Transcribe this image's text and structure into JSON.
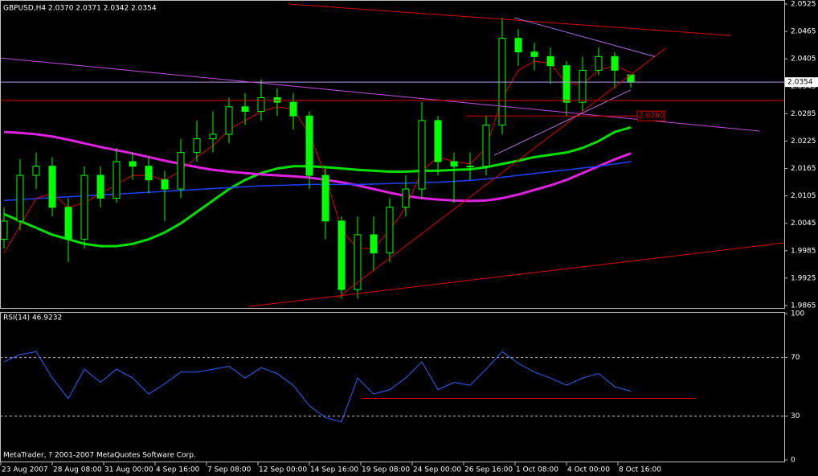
{
  "chart_data": [
    {
      "type": "candlestick",
      "title": "GBPUSD,H4  2.0370 2.0371 2.0342 2.0354",
      "color": "#00ff00",
      "price_line_color": "#b4a0e6",
      "open": [
        2.001,
        2.005,
        2.015,
        2.017,
        2.008,
        2.001,
        2.015,
        2.01,
        2.018,
        2.017,
        2.014,
        2.012,
        2.02,
        2.023,
        2.024,
        2.03,
        2.029,
        2.032,
        2.031,
        2.028,
        2.015,
        2.005,
        1.99,
        2.002,
        1.998,
        2.008,
        2.012,
        2.027,
        2.018,
        2.017,
        2.017,
        2.026,
        2.045,
        2.042,
        2.041,
        2.039,
        2.031,
        2.038,
        2.041,
        2.037
      ],
      "high": [
        2.008,
        2.0185,
        2.02,
        2.019,
        2.01,
        2.017,
        2.017,
        2.021,
        2.02,
        2.019,
        2.016,
        2.023,
        2.027,
        2.029,
        2.032,
        2.033,
        2.036,
        2.034,
        2.033,
        2.029,
        2.017,
        2.006,
        2.006,
        2.006,
        2.01,
        2.015,
        2.031,
        2.028,
        2.02,
        2.02,
        2.028,
        2.0495,
        2.047,
        2.044,
        2.043,
        2.04,
        2.041,
        2.043,
        2.042,
        2.0371
      ],
      "low": [
        1.999,
        2.003,
        2.012,
        2.006,
        1.996,
        1.999,
        2.008,
        2.009,
        2.014,
        2.011,
        2.005,
        2.01,
        2.018,
        2.02,
        2.022,
        2.026,
        2.027,
        2.028,
        2.025,
        2.012,
        2.001,
        1.988,
        1.988,
        1.994,
        1.996,
        2.006,
        2.01,
        2.015,
        2.009,
        2.014,
        2.015,
        2.024,
        2.039,
        2.038,
        2.035,
        2.028,
        2.029,
        2.037,
        2.034,
        2.0342
      ],
      "close": [
        2.005,
        2.015,
        2.017,
        2.008,
        2.001,
        2.015,
        2.01,
        2.018,
        2.017,
        2.014,
        2.012,
        2.02,
        2.023,
        2.024,
        2.03,
        2.029,
        2.032,
        2.031,
        2.028,
        2.015,
        2.005,
        1.99,
        2.002,
        1.998,
        2.008,
        2.012,
        2.027,
        2.018,
        2.017,
        2.017,
        2.026,
        2.045,
        2.042,
        2.041,
        2.039,
        2.031,
        2.038,
        2.041,
        2.038,
        2.0354
      ],
      "series": [
        {
          "color": "#00e000",
          "width": 3,
          "values": [
            2.0065,
            2.005,
            2.0035,
            2.002,
            2.001,
            2.0,
            1.9995,
            1.9995,
            2.0,
            2.001,
            2.0025,
            2.0045,
            2.007,
            2.0095,
            2.012,
            2.014,
            2.0155,
            2.0165,
            2.017,
            2.017,
            2.0168,
            2.0165,
            2.0162,
            2.016,
            2.0158,
            2.0158,
            2.016,
            2.016,
            2.0162,
            2.0163,
            2.0168,
            2.0175,
            2.0182,
            2.019,
            2.0195,
            2.02,
            2.021,
            2.0225,
            2.0245,
            2.0255
          ]
        },
        {
          "color": "#e020e0",
          "width": 3,
          "values": [
            2.0245,
            2.0243,
            2.024,
            2.0235,
            2.0228,
            2.022,
            2.0212,
            2.0205,
            2.0198,
            2.019,
            2.0182,
            2.0175,
            2.0168,
            2.0162,
            2.0158,
            2.0155,
            2.0152,
            2.015,
            2.0148,
            2.0145,
            2.014,
            2.0135,
            2.0128,
            2.012,
            2.0112,
            2.0105,
            2.01,
            2.0097,
            2.0095,
            2.0094,
            2.0095,
            2.01,
            2.0108,
            2.0118,
            2.0128,
            2.014,
            2.0155,
            2.017,
            2.0185,
            2.0198
          ]
        },
        {
          "color": "#2040ff",
          "width": 1.5,
          "values": [
            2.0095,
            2.0097,
            2.0099,
            2.0101,
            2.0103,
            2.0105,
            2.0107,
            2.0109,
            2.0111,
            2.0113,
            2.0115,
            2.0117,
            2.0119,
            2.0121,
            2.0123,
            2.0125,
            2.0127,
            2.0128,
            2.0129,
            2.013,
            2.013,
            2.013,
            2.013,
            2.0131,
            2.0132,
            2.0133,
            2.0134,
            2.0135,
            2.0137,
            2.0139,
            2.0142,
            2.0146,
            2.015,
            2.0154,
            2.0158,
            2.0162,
            2.0166,
            2.017,
            2.0175,
            2.018
          ]
        },
        {
          "color": "#e00000",
          "width": 1,
          "values": [
            1.998,
            2.004,
            2.01,
            2.011,
            2.008,
            2.009,
            2.011,
            2.013,
            2.015,
            2.015,
            2.014,
            2.016,
            2.019,
            2.0215,
            2.025,
            2.027,
            2.029,
            2.03,
            2.0295,
            2.024,
            2.015,
            2.003,
            1.999,
            1.999,
            2.003,
            2.008,
            2.016,
            2.019,
            2.018,
            2.0175,
            2.021,
            2.032,
            2.038,
            2.04,
            2.0395,
            2.035,
            2.035,
            2.038,
            2.039,
            2.0375
          ]
        }
      ],
      "lines": [
        {
          "color": "#c050e0",
          "x": [
            -0.25,
            47
          ],
          "y": [
            2.0407,
            2.0247
          ]
        },
        {
          "color": "#e00000",
          "x": [
            17.75,
            45.25
          ],
          "y": [
            2.0525,
            2.0456
          ]
        },
        {
          "color": "#e00000",
          "x": [
            15.25,
            48.5
          ],
          "y": [
            1.9863,
            2.0002
          ]
        },
        {
          "color": "#e00000",
          "x": [
            20.75,
            41.15
          ],
          "y": [
            1.9882,
            2.0428
          ]
        },
        {
          "color": "#b070e0",
          "x": [
            31.75,
            40.5
          ],
          "y": [
            2.0495,
            2.041
          ]
        },
        {
          "color": "#b070e0",
          "x": [
            30.5,
            39
          ],
          "y": [
            2.0194,
            2.0337
          ]
        },
        {
          "color": "#e00000",
          "x": [
            -0.25,
            48.5
          ],
          "y": [
            2.0314,
            2.0314
          ]
        },
        {
          "color": "#e00000",
          "x": [
            28.75,
            41
          ],
          "y": [
            2.028,
            2.028
          ],
          "label": "2.0280"
        }
      ],
      "ylim": [
        1.9865,
        2.0525
      ],
      "yticks": [
        1.9865,
        1.9925,
        1.9985,
        2.0045,
        2.0105,
        2.0165,
        2.0225,
        2.0285,
        2.0345,
        2.0405,
        2.0465,
        2.0525
      ]
    },
    {
      "type": "line",
      "title": "RSI(14) 46.9232",
      "color": "#3060ff",
      "values": [
        67,
        72,
        74,
        56,
        42,
        62,
        53,
        62,
        56,
        45,
        52,
        60,
        60,
        62,
        64,
        56,
        63,
        59,
        51,
        37,
        29,
        26,
        56,
        45,
        48,
        56,
        67,
        48,
        53,
        51,
        62,
        74,
        66,
        60,
        56,
        51,
        56,
        59,
        50,
        46.9232
      ],
      "lines": [
        {
          "color": "#e00000",
          "x": [
            22.25,
            43
          ],
          "y": [
            42,
            42
          ]
        }
      ],
      "ylim": [
        0,
        100
      ],
      "yticks": [
        0,
        30,
        70,
        100
      ],
      "grid": true,
      "footer": "MetaTrader, ? 2001-2007 MetaQuotes Software Corp.",
      "xticklabels": [
        "23 Aug 2007",
        "28 Aug 08:00",
        "31 Aug 00:00",
        "4 Sep 16:00",
        "7 Sep 08:00",
        "12 Sep 00:00",
        "14 Sep 16:00",
        "19 Sep 08:00",
        "24 Sep 00:00",
        "26 Sep 16:00",
        "1 Oct 08:00",
        "4 Oct 00:00",
        "8 Oct 16:00"
      ]
    }
  ]
}
